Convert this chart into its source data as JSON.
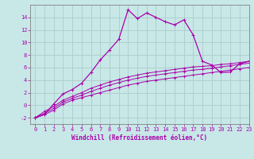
{
  "xlabel": "Windchill (Refroidissement éolien,°C)",
  "background_color": "#c8e8e8",
  "grid_color": "#b0d0d0",
  "line_color": "#aa00aa",
  "x_hours": [
    0,
    1,
    2,
    3,
    4,
    5,
    6,
    7,
    8,
    9,
    10,
    11,
    12,
    13,
    14,
    15,
    16,
    17,
    18,
    19,
    20,
    21,
    22,
    23
  ],
  "windchill": [
    -2,
    -1.5,
    0.2,
    1.8,
    2.5,
    3.5,
    5.2,
    7.2,
    8.8,
    10.5,
    15.2,
    13.8,
    14.7,
    14.0,
    13.3,
    12.8,
    13.6,
    11.2,
    7.0,
    6.4,
    5.2,
    5.3,
    6.6,
    7.0
  ],
  "temp1": [
    -2,
    -1.5,
    -0.8,
    0.2,
    0.8,
    1.2,
    1.6,
    2.0,
    2.4,
    2.8,
    3.2,
    3.5,
    3.8,
    4.0,
    4.2,
    4.4,
    4.6,
    4.8,
    5.0,
    5.2,
    5.4,
    5.6,
    5.8,
    6.0
  ],
  "temp2": [
    -2,
    -1.3,
    -0.5,
    0.5,
    1.1,
    1.6,
    2.2,
    2.7,
    3.2,
    3.6,
    4.0,
    4.3,
    4.6,
    4.8,
    5.0,
    5.2,
    5.4,
    5.6,
    5.7,
    5.9,
    6.1,
    6.3,
    6.5,
    6.7
  ],
  "temp3": [
    -2,
    -1.0,
    -0.2,
    0.8,
    1.4,
    2.0,
    2.7,
    3.2,
    3.7,
    4.1,
    4.5,
    4.8,
    5.1,
    5.3,
    5.5,
    5.7,
    5.9,
    6.1,
    6.2,
    6.3,
    6.5,
    6.6,
    6.8,
    7.0
  ],
  "ylim": [
    -3,
    16
  ],
  "xlim": [
    -0.5,
    23
  ],
  "yticks": [
    -2,
    0,
    2,
    4,
    6,
    8,
    10,
    12,
    14
  ],
  "xticks": [
    0,
    1,
    2,
    3,
    4,
    5,
    6,
    7,
    8,
    9,
    10,
    11,
    12,
    13,
    14,
    15,
    16,
    17,
    18,
    19,
    20,
    21,
    22,
    23
  ],
  "marker": "+",
  "tick_fontsize": 5,
  "xlabel_fontsize": 5.5
}
